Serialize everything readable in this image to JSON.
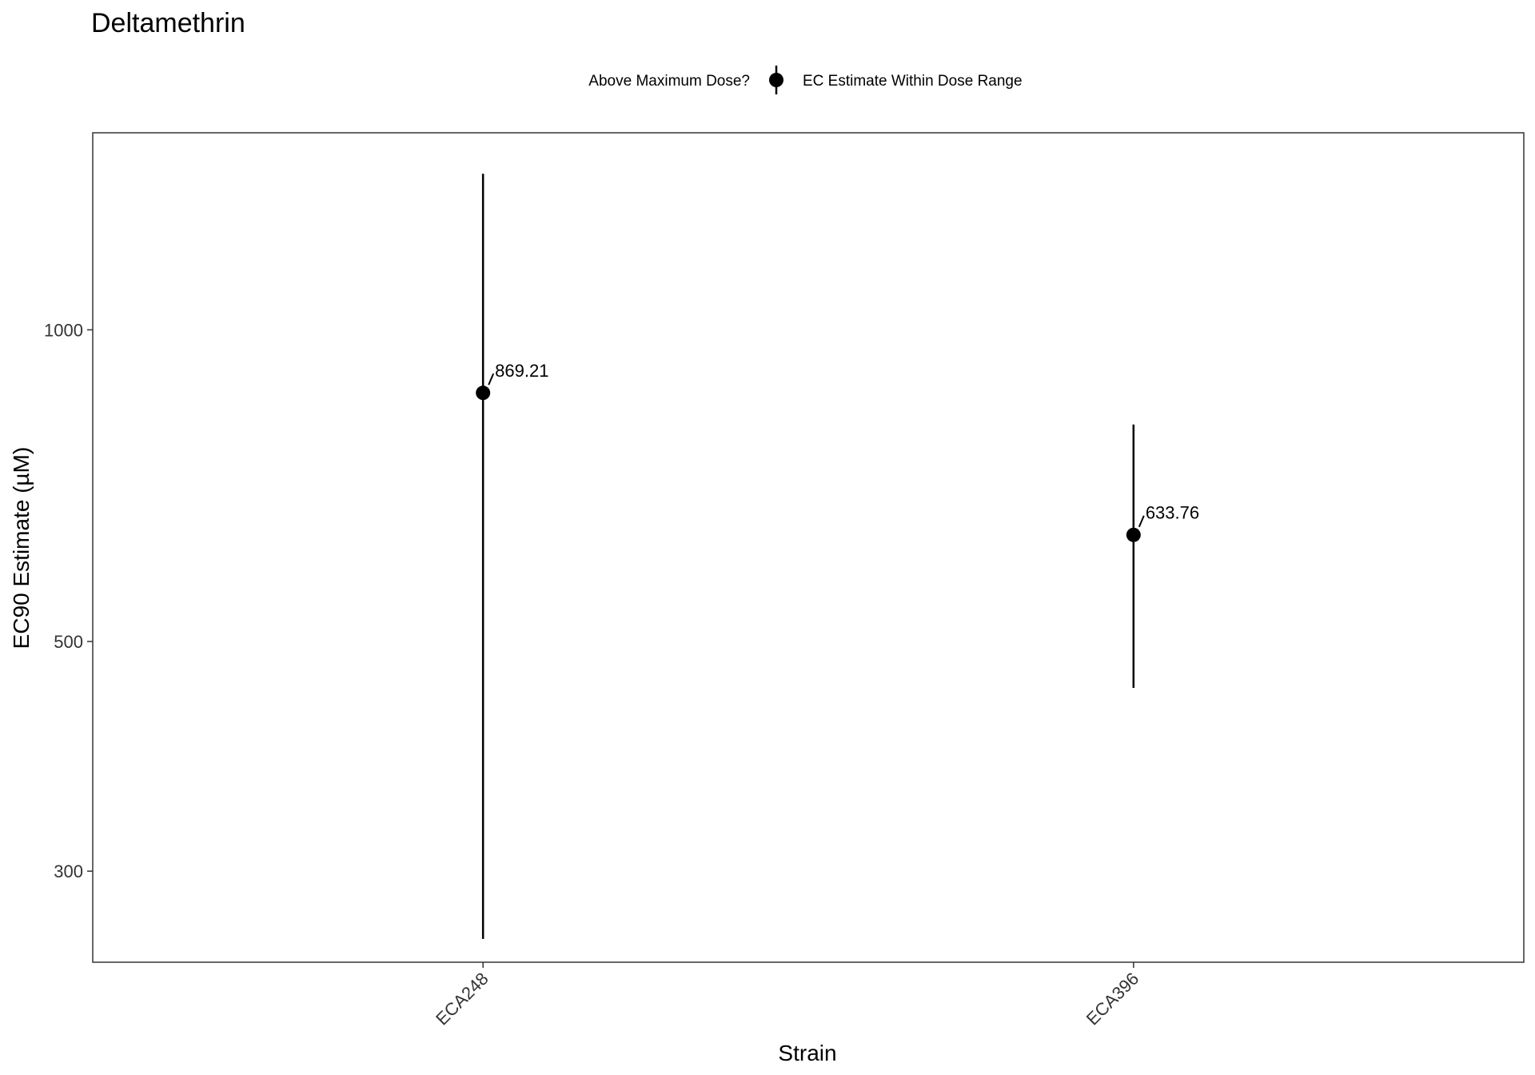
{
  "chart_data": {
    "type": "scatter",
    "title": "Deltamethrin",
    "xlabel": "Strain",
    "ylabel": "EC90 Estimate (µM)",
    "y_scale": "log",
    "ylim": [
      245,
      1550
    ],
    "y_ticks": [
      300,
      500,
      1000
    ],
    "y_tick_labels": [
      "300",
      "500",
      "1000"
    ],
    "categories": [
      "ECA248",
      "ECA396"
    ],
    "grid": false,
    "legend": {
      "position": "top",
      "title": "Above Maximum Dose?",
      "entries": [
        "EC Estimate Within Dose Range"
      ]
    },
    "series": [
      {
        "name": "EC Estimate Within Dose Range",
        "points": [
          {
            "x": "ECA248",
            "y": 869.21,
            "lower": 258,
            "upper": 1415,
            "label": "869.21"
          },
          {
            "x": "ECA396",
            "y": 633.76,
            "lower": 451,
            "upper": 810,
            "label": "633.76"
          }
        ]
      }
    ]
  }
}
